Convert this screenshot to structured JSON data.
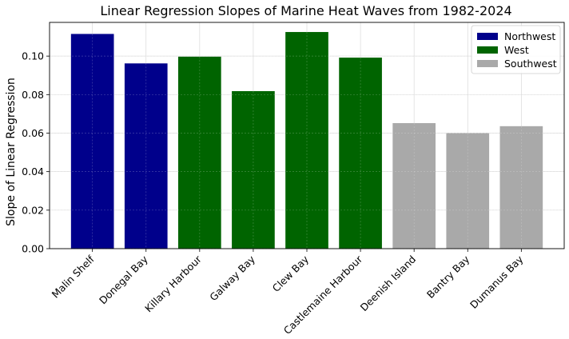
{
  "chart_data": {
    "type": "bar",
    "title": "Linear Regression Slopes of Marine Heat Waves from 1982-2024",
    "xlabel": "",
    "ylabel": "Slope of Linear Regression",
    "categories": [
      "Malin Shelf",
      "Donegal Bay",
      "Killary Harbour",
      "Galway Bay",
      "Clew Bay",
      "Castlemaine Harbour",
      "Deenish Island",
      "Bantry Bay",
      "Dumanus Bay"
    ],
    "values": [
      0.1115,
      0.0962,
      0.0997,
      0.0818,
      0.1125,
      0.0992,
      0.0652,
      0.06,
      0.0636
    ],
    "groups": [
      "Northwest",
      "Northwest",
      "West",
      "West",
      "West",
      "West",
      "Southwest",
      "Southwest",
      "Southwest"
    ],
    "ylim": [
      0,
      0.1175
    ],
    "yticks": [
      "0.00",
      "0.02",
      "0.04",
      "0.06",
      "0.08",
      "0.10"
    ],
    "grid": true,
    "legend_position": "top-right",
    "legend": [
      {
        "name": "Northwest",
        "color": "#00008b"
      },
      {
        "name": "West",
        "color": "#006400"
      },
      {
        "name": "Southwest",
        "color": "#a9a9a9"
      }
    ]
  }
}
